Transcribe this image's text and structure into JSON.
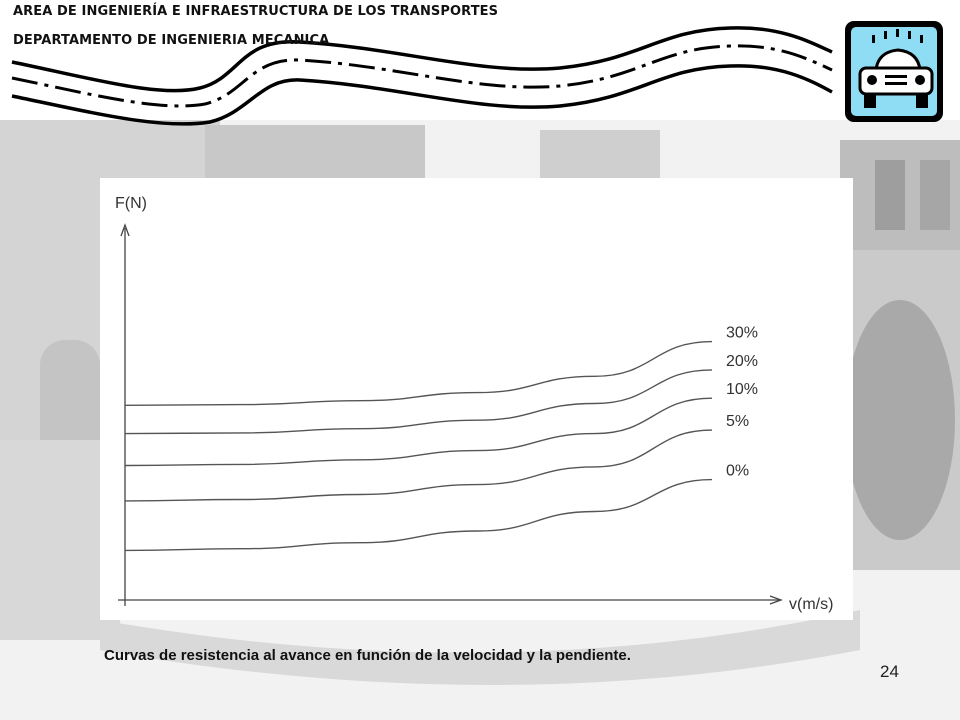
{
  "header": {
    "line1": "AREA DE INGENIERÍA E INFRAESTRUCTURA DE LOS TRANSPORTES",
    "line2": "DEPARTAMENTO DE INGENIERIA MECANICA"
  },
  "logo": {
    "icon": "car-icon",
    "fill": "#8fdcf5"
  },
  "chart_data": {
    "type": "line",
    "xlabel": "v(m/s)",
    "ylabel": "F(N)",
    "xlim": [
      0,
      10
    ],
    "ylim": [
      0,
      10
    ],
    "grid": false,
    "x": [
      0,
      2,
      4,
      6,
      8,
      10
    ],
    "series": [
      {
        "name": "30%",
        "values": [
          5.5,
          5.52,
          5.63,
          5.86,
          6.32,
          7.3
        ]
      },
      {
        "name": "20%",
        "values": [
          4.7,
          4.72,
          4.84,
          5.08,
          5.55,
          6.5
        ]
      },
      {
        "name": "10%",
        "values": [
          3.8,
          3.83,
          3.96,
          4.22,
          4.7,
          5.7
        ]
      },
      {
        "name": "5%",
        "values": [
          2.8,
          2.84,
          2.98,
          3.26,
          3.76,
          4.8
        ]
      },
      {
        "name": "0%",
        "values": [
          1.4,
          1.45,
          1.62,
          1.95,
          2.5,
          3.4
        ]
      }
    ]
  },
  "caption": "Curvas de resistencia al avance en función de la velocidad y la pendiente.",
  "slide_number": "24"
}
